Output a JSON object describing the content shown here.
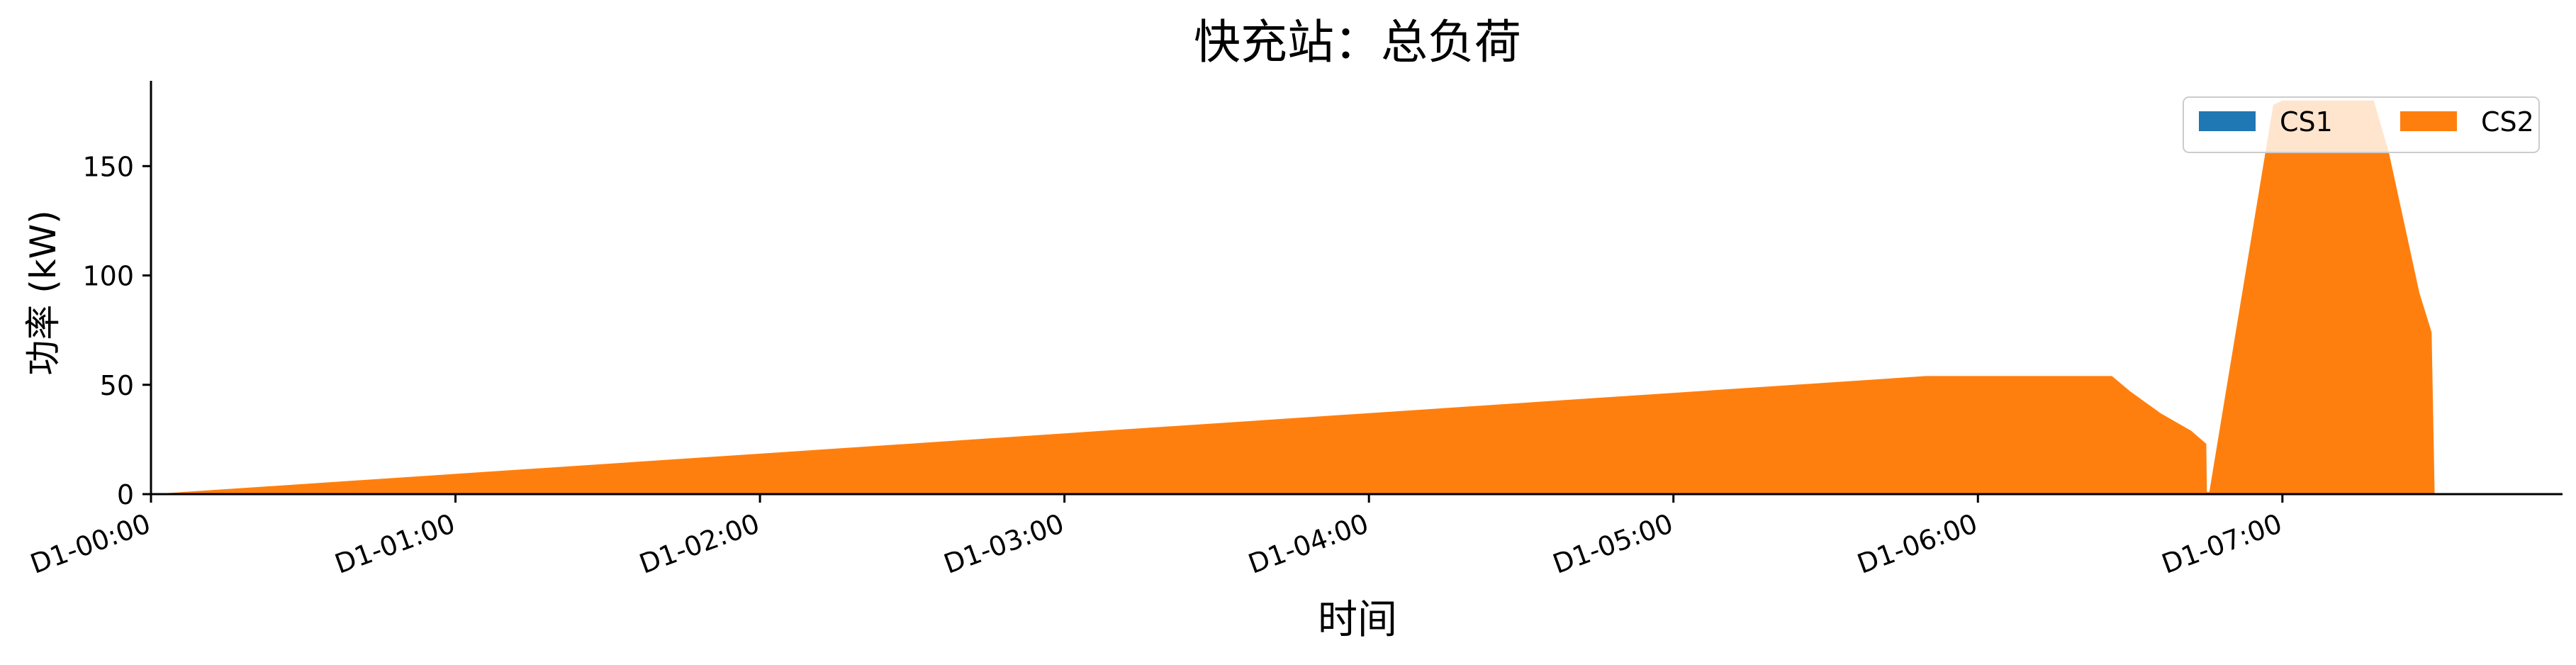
{
  "chart_data": {
    "type": "area",
    "stacked": true,
    "title": "快充站：总负荷",
    "xlabel": "时间",
    "ylabel": "功率 (kW)",
    "xlim_hours": [
      0,
      7.92
    ],
    "ylim": [
      0,
      189
    ],
    "x_ticks": [
      {
        "hour": 0,
        "label": "D1-00:00"
      },
      {
        "hour": 1,
        "label": "D1-01:00"
      },
      {
        "hour": 2,
        "label": "D1-02:00"
      },
      {
        "hour": 3,
        "label": "D1-03:00"
      },
      {
        "hour": 4,
        "label": "D1-04:00"
      },
      {
        "hour": 5,
        "label": "D1-05:00"
      },
      {
        "hour": 6,
        "label": "D1-06:00"
      },
      {
        "hour": 7,
        "label": "D1-07:00"
      }
    ],
    "y_ticks": [
      0,
      50,
      100,
      150
    ],
    "legend": {
      "location": "top-right",
      "columns": 2
    },
    "grid": false,
    "series": [
      {
        "name": "CS1",
        "color": "#1f77b4",
        "points": [
          [
            0,
            0
          ],
          [
            7.5,
            0
          ]
        ]
      },
      {
        "name": "CS2",
        "color": "#ff7f0e",
        "points": [
          [
            0.0,
            0
          ],
          [
            5.83,
            54
          ],
          [
            6.44,
            54
          ],
          [
            6.5,
            47
          ],
          [
            6.6,
            37
          ],
          [
            6.7,
            29
          ],
          [
            6.75,
            23
          ],
          [
            6.752,
            1
          ],
          [
            6.76,
            1
          ],
          [
            6.97,
            178
          ],
          [
            7.0,
            180
          ],
          [
            7.3,
            180
          ],
          [
            7.35,
            156
          ],
          [
            7.4,
            124
          ],
          [
            7.45,
            92
          ],
          [
            7.49,
            74
          ],
          [
            7.5,
            0
          ]
        ]
      }
    ]
  }
}
